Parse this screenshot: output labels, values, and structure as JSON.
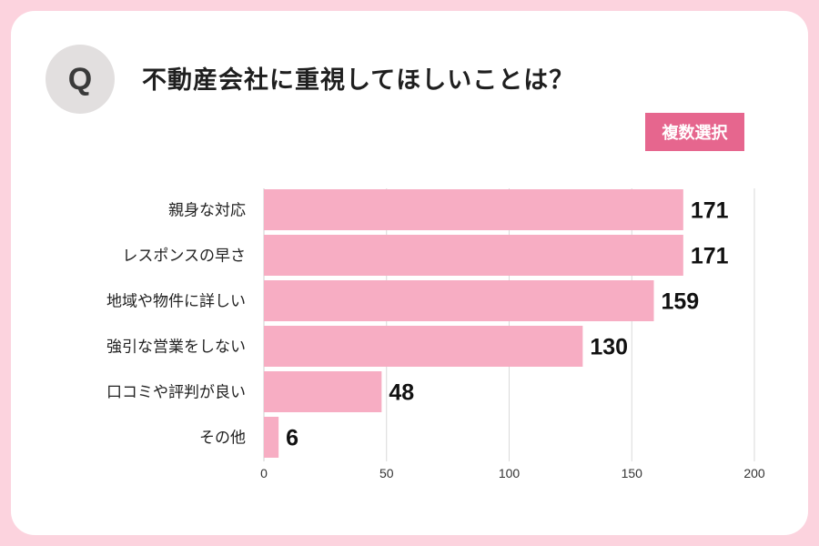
{
  "question_mark": "Q",
  "question": "不動産会社に重視してほしいことは？",
  "badge": "複数選択",
  "colors": {
    "bar": "#f7adc3",
    "badge": "#e6668e",
    "background": "#fcd3de"
  },
  "chart_data": {
    "type": "bar",
    "orientation": "horizontal",
    "categories": [
      "親身な対応",
      "レスポンスの早さ",
      "地域や物件に詳しい",
      "強引な営業をしない",
      "口コミや評判が良い",
      "その他"
    ],
    "values": [
      171,
      171,
      159,
      130,
      48,
      6
    ],
    "xlim": [
      0,
      200
    ],
    "xticks": [
      0,
      50,
      100,
      150,
      200
    ],
    "grid": "vertical",
    "data_labels": true
  }
}
